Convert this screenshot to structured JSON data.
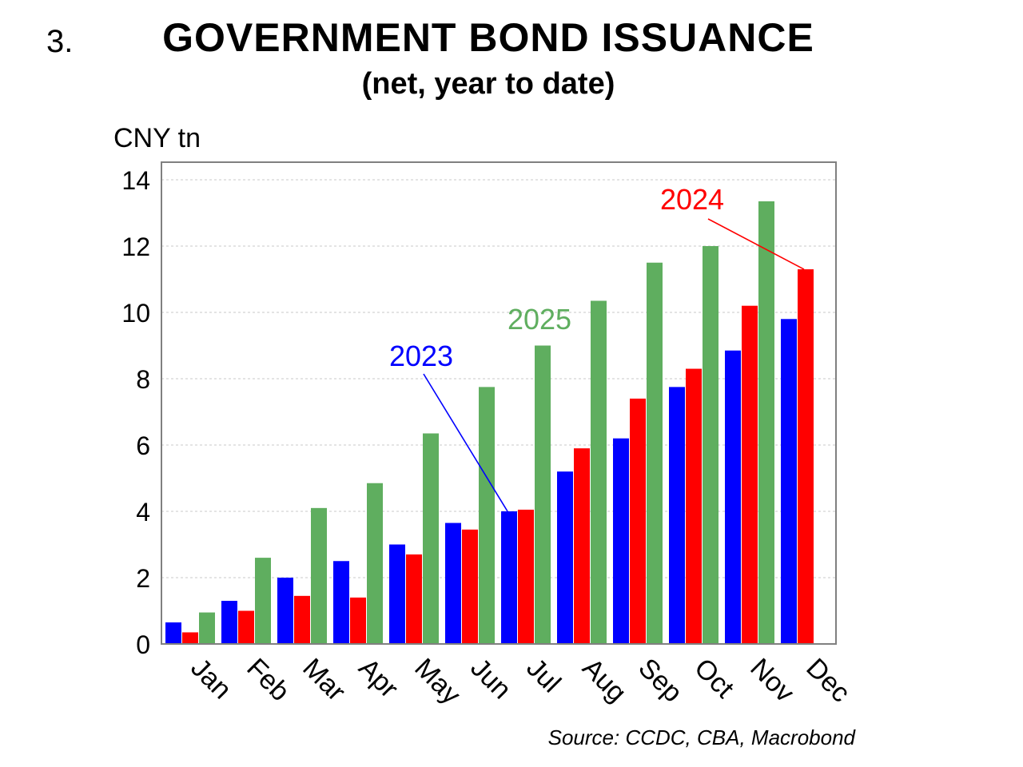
{
  "header": {
    "number": "3.",
    "title": "GOVERNMENT BOND ISSUANCE",
    "subtitle": "(net, year to date)"
  },
  "y_unit": "CNY tn",
  "source": "Source: CCDC, CBA, Macrobond",
  "colors": {
    "series_2023": "#0000ff",
    "series_2024": "#ff0000",
    "series_2025": "#5fae5f",
    "gridline": "#c8c8c8",
    "frame": "#808080"
  },
  "chart_data": {
    "type": "bar",
    "title": "GOVERNMENT BOND ISSUANCE",
    "subtitle": "(net, year to date)",
    "ylabel": "CNY tn",
    "xlabel": "",
    "ylim": [
      0,
      14.5
    ],
    "yticks": [
      0,
      2,
      4,
      6,
      8,
      10,
      12,
      14
    ],
    "grid": true,
    "categories": [
      "Jan",
      "Feb",
      "Mar",
      "Apr",
      "May",
      "Jun",
      "Jul",
      "Aug",
      "Sep",
      "Oct",
      "Nov",
      "Dec"
    ],
    "series": [
      {
        "name": "2023",
        "color": "#0000ff",
        "values": [
          0.65,
          1.3,
          2.0,
          2.5,
          3.0,
          3.65,
          4.0,
          5.2,
          6.2,
          7.75,
          8.85,
          9.8
        ]
      },
      {
        "name": "2024",
        "color": "#ff0000",
        "values": [
          0.35,
          1.0,
          1.45,
          1.4,
          2.7,
          3.45,
          4.05,
          5.9,
          7.4,
          8.3,
          10.2,
          11.3
        ]
      },
      {
        "name": "2025",
        "color": "#5fae5f",
        "values": [
          0.95,
          2.6,
          4.1,
          4.85,
          6.35,
          7.75,
          9.0,
          10.35,
          11.5,
          12.0,
          13.35,
          null
        ]
      }
    ],
    "annotations": [
      {
        "label": "2023",
        "series": "2023",
        "category": "Jul"
      },
      {
        "label": "2025",
        "series": "2025",
        "category": "Jul"
      },
      {
        "label": "2024",
        "series": "2024",
        "category": "Dec"
      }
    ]
  }
}
